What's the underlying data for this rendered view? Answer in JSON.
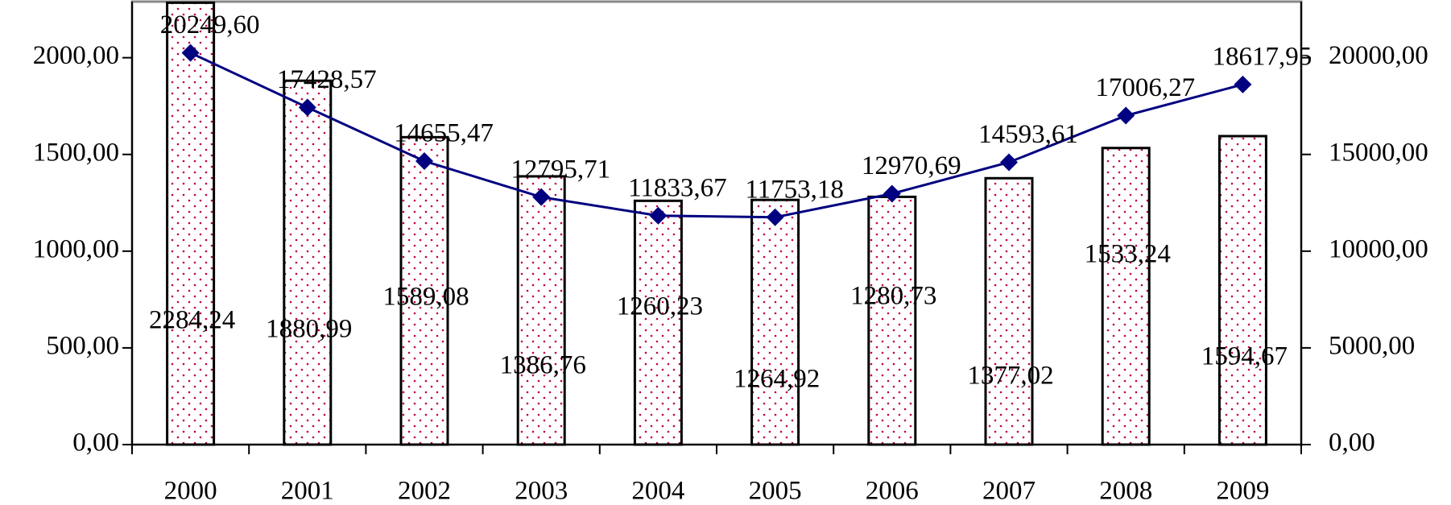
{
  "chart_data": {
    "type": "bar",
    "categories": [
      "2000",
      "2001",
      "2002",
      "2003",
      "2004",
      "2005",
      "2006",
      "2007",
      "2008",
      "2009"
    ],
    "series": [
      {
        "type": "bar",
        "color": "#c00040",
        "values": [
          2284.24,
          1880.99,
          1589.08,
          1386.76,
          1260.23,
          1264.92,
          1280.73,
          1377.02,
          1533.24,
          1594.67
        ],
        "value_labels": [
          "2284,24",
          "1880,99",
          "1589,08",
          "1386,76",
          "1260,23",
          "1264,92",
          "1280,73",
          "1377,02",
          "1533,24",
          "1594,67"
        ]
      },
      {
        "type": "line",
        "axis": "y2",
        "color": "#000080",
        "values": [
          20249.6,
          17428.57,
          14655.47,
          12795.71,
          11833.67,
          11753.18,
          12970.69,
          14593.61,
          17006.27,
          18617.95
        ],
        "value_labels": [
          "20249,60",
          "17428,57",
          "14655,47",
          "12795,71",
          "11833,67",
          "11753,18",
          "12970,69",
          "14593,61",
          "17006,27",
          "18617,95"
        ]
      }
    ],
    "ylim": [
      0,
      2290
    ],
    "yticks": [
      {
        "value": 0,
        "label": "0,00"
      },
      {
        "value": 500,
        "label": "500,00"
      },
      {
        "value": 1000,
        "label": "1000,00"
      },
      {
        "value": 1500,
        "label": "1500,00"
      },
      {
        "value": 2000,
        "label": "2000,00"
      }
    ],
    "y2lim": [
      0,
      22900
    ],
    "y2ticks": [
      {
        "value": 0,
        "label": "0,00"
      },
      {
        "value": 5000,
        "label": "5000,00"
      },
      {
        "value": 10000,
        "label": "10000,00"
      },
      {
        "value": 15000,
        "label": "15000,00"
      },
      {
        "value": 20000,
        "label": "20000,00"
      }
    ]
  }
}
